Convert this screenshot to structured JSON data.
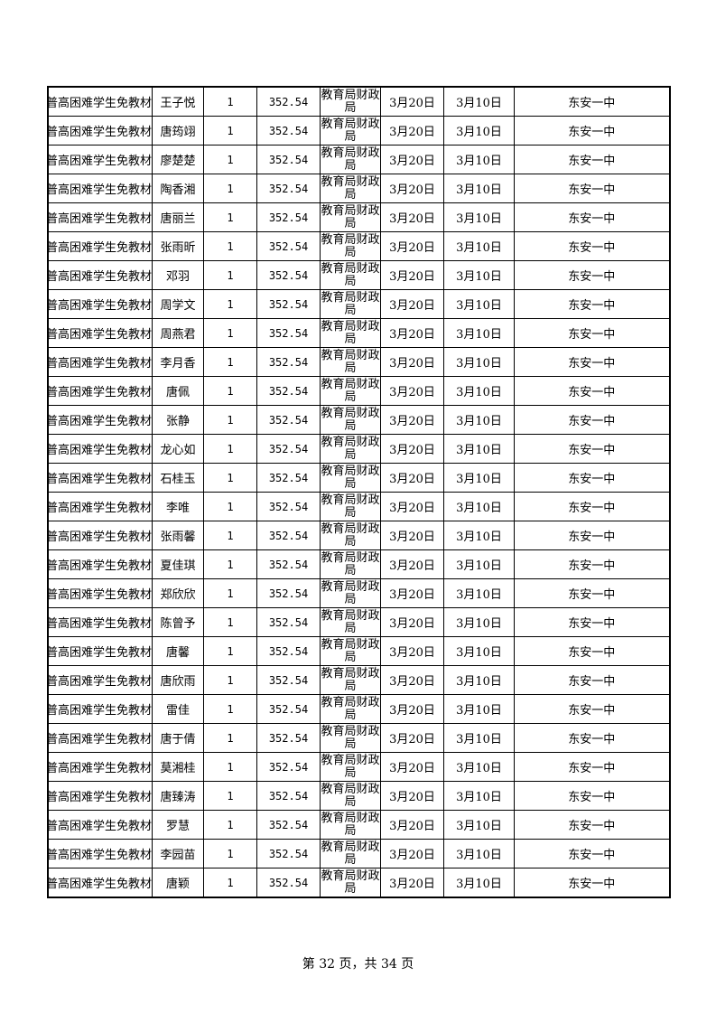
{
  "table": {
    "rows": [
      {
        "item": "普高困难学生免教材",
        "name": "王子悦",
        "qty": "1",
        "amount": "352.54",
        "dept": "教育局财政局",
        "date1": "3月20日",
        "date2": "3月10日",
        "school": "东安一中"
      },
      {
        "item": "普高困难学生免教材",
        "name": "唐筠翊",
        "qty": "1",
        "amount": "352.54",
        "dept": "教育局财政局",
        "date1": "3月20日",
        "date2": "3月10日",
        "school": "东安一中"
      },
      {
        "item": "普高困难学生免教材",
        "name": "廖楚楚",
        "qty": "1",
        "amount": "352.54",
        "dept": "教育局财政局",
        "date1": "3月20日",
        "date2": "3月10日",
        "school": "东安一中"
      },
      {
        "item": "普高困难学生免教材",
        "name": "陶香湘",
        "qty": "1",
        "amount": "352.54",
        "dept": "教育局财政局",
        "date1": "3月20日",
        "date2": "3月10日",
        "school": "东安一中"
      },
      {
        "item": "普高困难学生免教材",
        "name": "唐丽兰",
        "qty": "1",
        "amount": "352.54",
        "dept": "教育局财政局",
        "date1": "3月20日",
        "date2": "3月10日",
        "school": "东安一中"
      },
      {
        "item": "普高困难学生免教材",
        "name": "张雨昕",
        "qty": "1",
        "amount": "352.54",
        "dept": "教育局财政局",
        "date1": "3月20日",
        "date2": "3月10日",
        "school": "东安一中"
      },
      {
        "item": "普高困难学生免教材",
        "name": "邓羽",
        "qty": "1",
        "amount": "352.54",
        "dept": "教育局财政局",
        "date1": "3月20日",
        "date2": "3月10日",
        "school": "东安一中"
      },
      {
        "item": "普高困难学生免教材",
        "name": "周学文",
        "qty": "1",
        "amount": "352.54",
        "dept": "教育局财政局",
        "date1": "3月20日",
        "date2": "3月10日",
        "school": "东安一中"
      },
      {
        "item": "普高困难学生免教材",
        "name": "周燕君",
        "qty": "1",
        "amount": "352.54",
        "dept": "教育局财政局",
        "date1": "3月20日",
        "date2": "3月10日",
        "school": "东安一中"
      },
      {
        "item": "普高困难学生免教材",
        "name": "李月香",
        "qty": "1",
        "amount": "352.54",
        "dept": "教育局财政局",
        "date1": "3月20日",
        "date2": "3月10日",
        "school": "东安一中"
      },
      {
        "item": "普高困难学生免教材",
        "name": "唐佩",
        "qty": "1",
        "amount": "352.54",
        "dept": "教育局财政局",
        "date1": "3月20日",
        "date2": "3月10日",
        "school": "东安一中"
      },
      {
        "item": "普高困难学生免教材",
        "name": "张静",
        "qty": "1",
        "amount": "352.54",
        "dept": "教育局财政局",
        "date1": "3月20日",
        "date2": "3月10日",
        "school": "东安一中"
      },
      {
        "item": "普高困难学生免教材",
        "name": "龙心如",
        "qty": "1",
        "amount": "352.54",
        "dept": "教育局财政局",
        "date1": "3月20日",
        "date2": "3月10日",
        "school": "东安一中"
      },
      {
        "item": "普高困难学生免教材",
        "name": "石桂玉",
        "qty": "1",
        "amount": "352.54",
        "dept": "教育局财政局",
        "date1": "3月20日",
        "date2": "3月10日",
        "school": "东安一中"
      },
      {
        "item": "普高困难学生免教材",
        "name": "李唯",
        "qty": "1",
        "amount": "352.54",
        "dept": "教育局财政局",
        "date1": "3月20日",
        "date2": "3月10日",
        "school": "东安一中"
      },
      {
        "item": "普高困难学生免教材",
        "name": "张雨馨",
        "qty": "1",
        "amount": "352.54",
        "dept": "教育局财政局",
        "date1": "3月20日",
        "date2": "3月10日",
        "school": "东安一中"
      },
      {
        "item": "普高困难学生免教材",
        "name": "夏佳琪",
        "qty": "1",
        "amount": "352.54",
        "dept": "教育局财政局",
        "date1": "3月20日",
        "date2": "3月10日",
        "school": "东安一中"
      },
      {
        "item": "普高困难学生免教材",
        "name": "郑欣欣",
        "qty": "1",
        "amount": "352.54",
        "dept": "教育局财政局",
        "date1": "3月20日",
        "date2": "3月10日",
        "school": "东安一中"
      },
      {
        "item": "普高困难学生免教材",
        "name": "陈曾予",
        "qty": "1",
        "amount": "352.54",
        "dept": "教育局财政局",
        "date1": "3月20日",
        "date2": "3月10日",
        "school": "东安一中"
      },
      {
        "item": "普高困难学生免教材",
        "name": "唐馨",
        "qty": "1",
        "amount": "352.54",
        "dept": "教育局财政局",
        "date1": "3月20日",
        "date2": "3月10日",
        "school": "东安一中"
      },
      {
        "item": "普高困难学生免教材",
        "name": "唐欣雨",
        "qty": "1",
        "amount": "352.54",
        "dept": "教育局财政局",
        "date1": "3月20日",
        "date2": "3月10日",
        "school": "东安一中"
      },
      {
        "item": "普高困难学生免教材",
        "name": "雷佳",
        "qty": "1",
        "amount": "352.54",
        "dept": "教育局财政局",
        "date1": "3月20日",
        "date2": "3月10日",
        "school": "东安一中"
      },
      {
        "item": "普高困难学生免教材",
        "name": "唐于倩",
        "qty": "1",
        "amount": "352.54",
        "dept": "教育局财政局",
        "date1": "3月20日",
        "date2": "3月10日",
        "school": "东安一中"
      },
      {
        "item": "普高困难学生免教材",
        "name": "莫湘桂",
        "qty": "1",
        "amount": "352.54",
        "dept": "教育局财政局",
        "date1": "3月20日",
        "date2": "3月10日",
        "school": "东安一中"
      },
      {
        "item": "普高困难学生免教材",
        "name": "唐臻涛",
        "qty": "1",
        "amount": "352.54",
        "dept": "教育局财政局",
        "date1": "3月20日",
        "date2": "3月10日",
        "school": "东安一中"
      },
      {
        "item": "普高困难学生免教材",
        "name": "罗慧",
        "qty": "1",
        "amount": "352.54",
        "dept": "教育局财政局",
        "date1": "3月20日",
        "date2": "3月10日",
        "school": "东安一中"
      },
      {
        "item": "普高困难学生免教材",
        "name": "李园苗",
        "qty": "1",
        "amount": "352.54",
        "dept": "教育局财政局",
        "date1": "3月20日",
        "date2": "3月10日",
        "school": "东安一中"
      },
      {
        "item": "普高困难学生免教材",
        "name": "唐颖",
        "qty": "1",
        "amount": "352.54",
        "dept": "教育局财政局",
        "date1": "3月20日",
        "date2": "3月10日",
        "school": "东安一中"
      }
    ]
  },
  "footer": {
    "page_label": "第 32 页，共 34 页"
  }
}
